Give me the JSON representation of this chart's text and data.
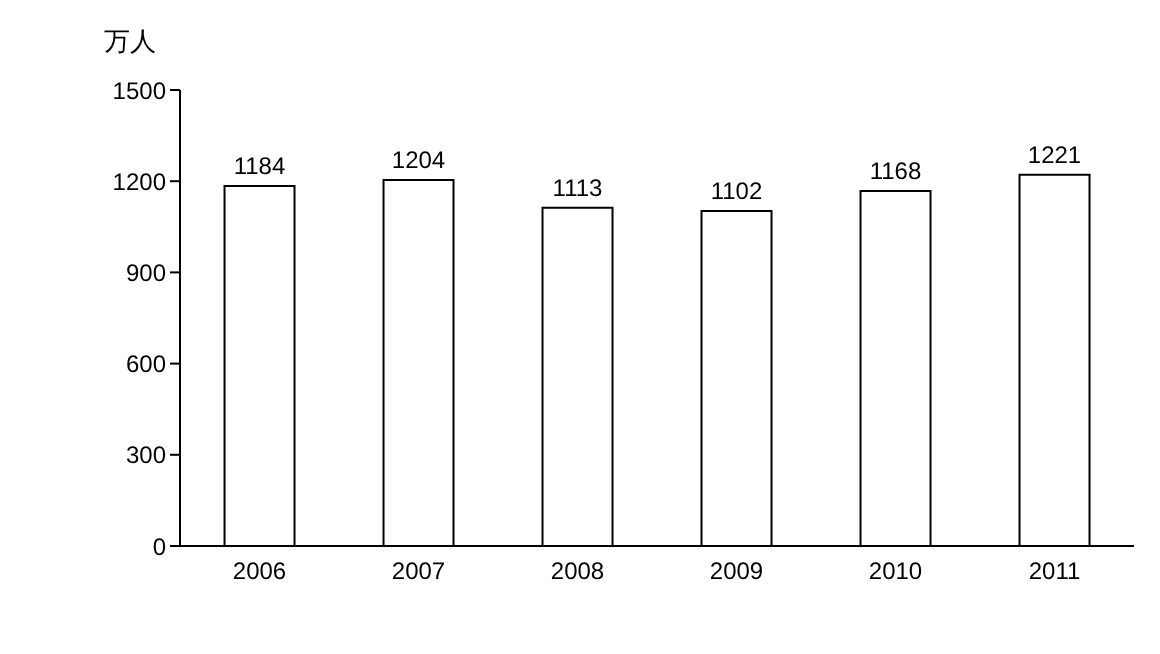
{
  "chart_data": {
    "type": "bar",
    "ylabel": "万人",
    "categories": [
      "2006",
      "2007",
      "2008",
      "2009",
      "2010",
      "2011"
    ],
    "values": [
      1184,
      1204,
      1113,
      1102,
      1168,
      1221
    ],
    "color": "#ffffff",
    "ylim": [
      0,
      1500
    ],
    "yticks": [
      0,
      300,
      600,
      900,
      1200,
      1500
    ],
    "grid": false,
    "data_labels": true
  }
}
